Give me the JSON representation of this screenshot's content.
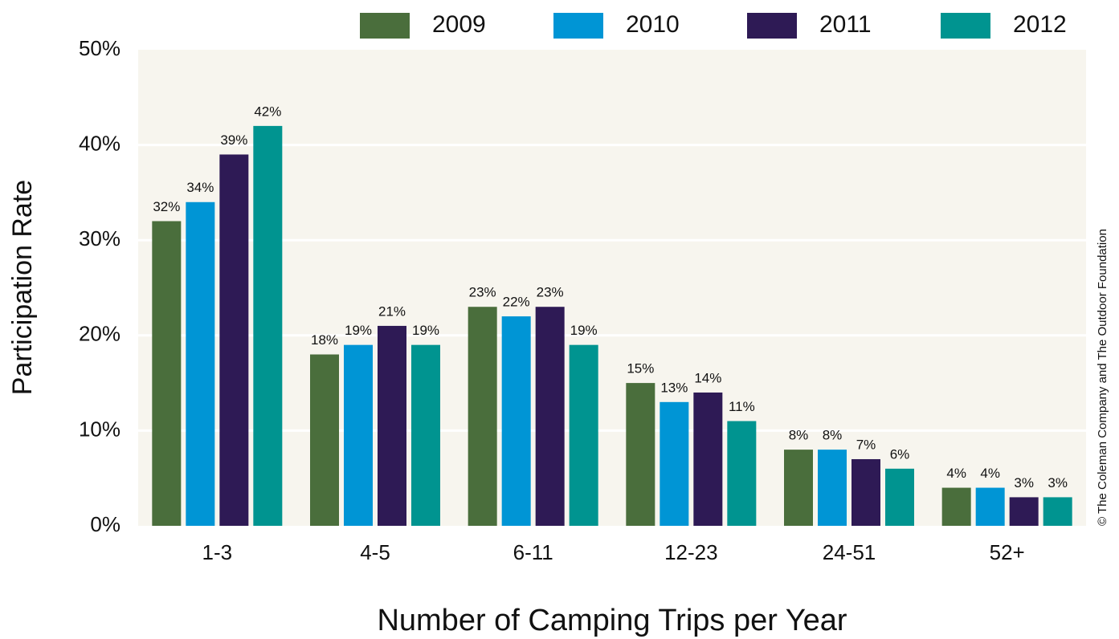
{
  "chart_data": {
    "type": "bar",
    "x_label": "Number of Camping Trips per Year",
    "y_label": "Participation Rate",
    "credit": "© The Coleman Company and The Outdoor Foundation",
    "categories": [
      "1-3",
      "4-5",
      "6-11",
      "12-23",
      "24-51",
      "52+"
    ],
    "series": [
      {
        "name": "2009",
        "color": "#4a6e3c",
        "values": [
          32,
          18,
          23,
          15,
          8,
          4
        ],
        "value_labels": [
          "32%",
          "18%",
          "23%",
          "15%",
          "8%",
          "4%"
        ]
      },
      {
        "name": "2010",
        "color": "#0095d5",
        "values": [
          34,
          19,
          22,
          13,
          8,
          4
        ],
        "value_labels": [
          "34%",
          "19%",
          "22%",
          "13%",
          "8%",
          "4%"
        ]
      },
      {
        "name": "2011",
        "color": "#2e1a55",
        "values": [
          39,
          21,
          23,
          14,
          7,
          3
        ],
        "value_labels": [
          "39%",
          "21%",
          "23%",
          "14%",
          "7%",
          "3%"
        ]
      },
      {
        "name": "2012",
        "color": "#009490",
        "values": [
          42,
          19,
          19,
          11,
          6,
          3
        ],
        "value_labels": [
          "42%",
          "19%",
          "19%",
          "11%",
          "6%",
          "3%"
        ]
      }
    ],
    "ylim": [
      0,
      50
    ],
    "yticks": [
      {
        "value": 0,
        "label": "0%"
      },
      {
        "value": 10,
        "label": "10%"
      },
      {
        "value": 20,
        "label": "20%"
      },
      {
        "value": 30,
        "label": "30%"
      },
      {
        "value": 40,
        "label": "40%"
      },
      {
        "value": 50,
        "label": "50%"
      }
    ],
    "grid": true,
    "legend": "top"
  }
}
